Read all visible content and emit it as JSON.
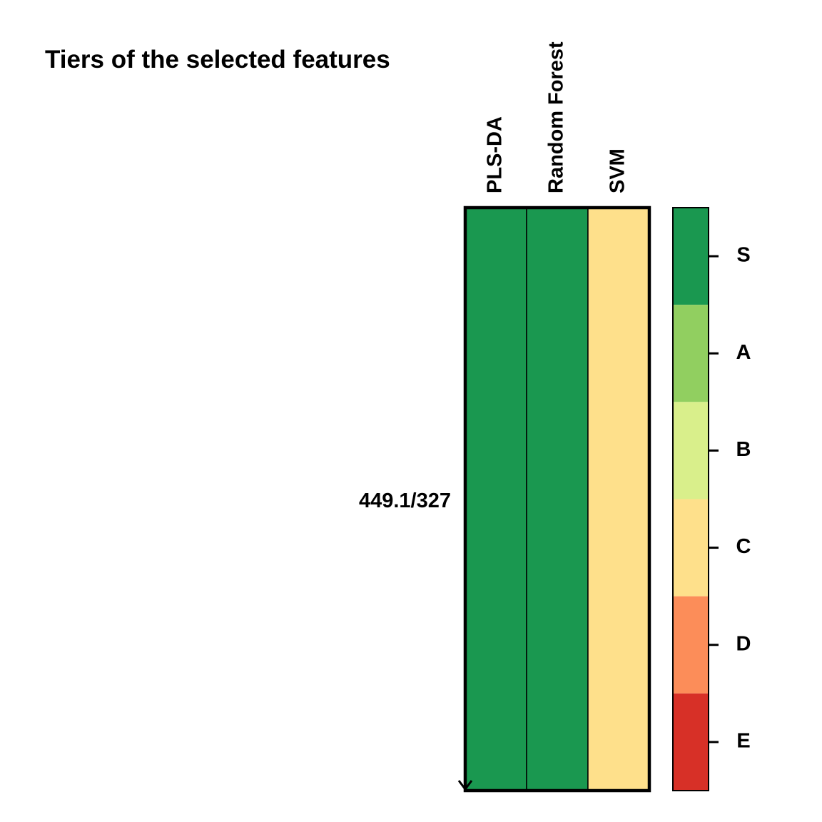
{
  "chart_data": {
    "type": "heatmap",
    "title": "Tiers of the selected features",
    "columns": [
      "PLS-DA",
      "Random Forest",
      "SVM"
    ],
    "rows": [
      {
        "label": "449.1/327",
        "tiers": [
          "S",
          "S",
          "C"
        ]
      }
    ],
    "legend": {
      "placement": "right",
      "tiers": [
        "S",
        "A",
        "B",
        "C",
        "D",
        "E"
      ],
      "colors": {
        "S": "#1a9850",
        "A": "#91cf60",
        "B": "#d9ef8b",
        "C": "#fee08b",
        "D": "#fc8d59",
        "E": "#d73027"
      }
    }
  }
}
